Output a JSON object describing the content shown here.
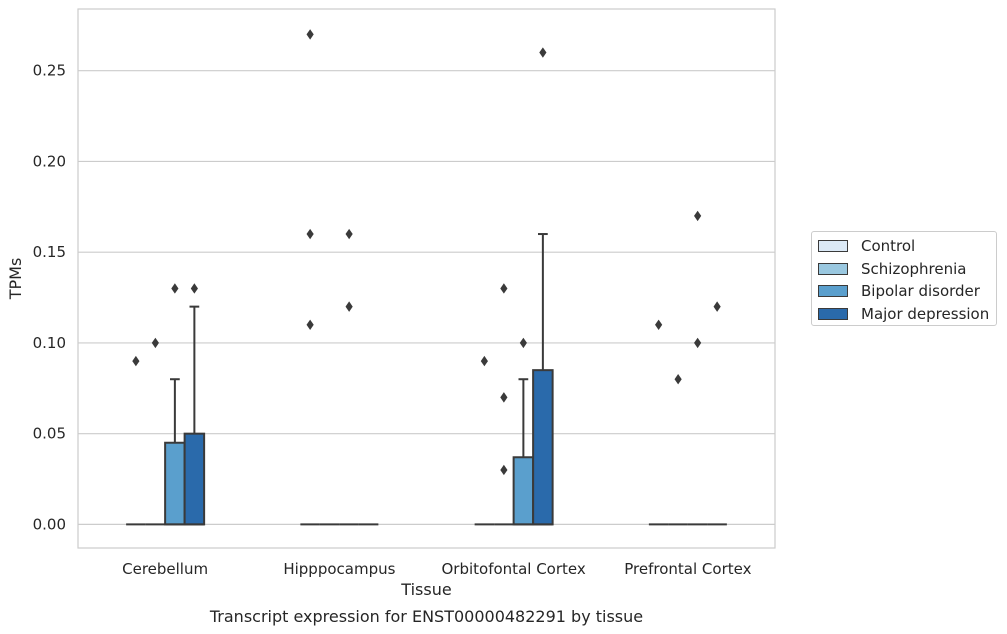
{
  "chart_data": {
    "type": "box",
    "title": "Transcript expression for ENST00000482291 by tissue",
    "xlabel": "Tissue",
    "ylabel": "TPMs",
    "ylim": [
      -0.013,
      0.284
    ],
    "yticks": [
      0.0,
      0.05,
      0.1,
      0.15,
      0.2,
      0.25
    ],
    "ytick_labels": [
      "0.00",
      "0.05",
      "0.10",
      "0.15",
      "0.20",
      "0.25"
    ],
    "grid": true,
    "legend_position": "right",
    "categories": [
      "Cerebellum",
      "Hipppocampus",
      "Orbitofontal Cortex",
      "Prefrontal Cortex"
    ],
    "series": [
      {
        "name": "Control",
        "color": "#dbe9f6",
        "boxes": [
          {
            "q1": 0,
            "median": 0,
            "q3": 0,
            "whisker_low": 0,
            "whisker_high": 0,
            "outliers": [
              0.09
            ]
          },
          {
            "q1": 0,
            "median": 0,
            "q3": 0,
            "whisker_low": 0,
            "whisker_high": 0,
            "outliers": [
              0.11,
              0.16,
              0.27
            ]
          },
          {
            "q1": 0,
            "median": 0,
            "q3": 0,
            "whisker_low": 0,
            "whisker_high": 0,
            "outliers": [
              0.09
            ]
          },
          {
            "q1": 0,
            "median": 0,
            "q3": 0,
            "whisker_low": 0,
            "whisker_high": 0,
            "outliers": [
              0.11
            ]
          }
        ]
      },
      {
        "name": "Schizophrenia",
        "color": "#9ac8e0",
        "boxes": [
          {
            "q1": 0,
            "median": 0,
            "q3": 0,
            "whisker_low": 0,
            "whisker_high": 0,
            "outliers": [
              0.1
            ]
          },
          {
            "q1": 0,
            "median": 0,
            "q3": 0,
            "whisker_low": 0,
            "whisker_high": 0,
            "outliers": []
          },
          {
            "q1": 0,
            "median": 0,
            "q3": 0,
            "whisker_low": 0,
            "whisker_high": 0,
            "outliers": [
              0.03,
              0.07,
              0.13
            ]
          },
          {
            "q1": 0,
            "median": 0,
            "q3": 0,
            "whisker_low": 0,
            "whisker_high": 0,
            "outliers": [
              0.08
            ]
          }
        ]
      },
      {
        "name": "Bipolar disorder",
        "color": "#5a9fcd",
        "boxes": [
          {
            "q1": 0,
            "median": 0,
            "q3": 0.045,
            "whisker_low": 0,
            "whisker_high": 0.08,
            "outliers": [
              0.13
            ]
          },
          {
            "q1": 0,
            "median": 0,
            "q3": 0,
            "whisker_low": 0,
            "whisker_high": 0,
            "outliers": [
              0.12,
              0.16
            ]
          },
          {
            "q1": 0,
            "median": 0,
            "q3": 0.037,
            "whisker_low": 0,
            "whisker_high": 0.08,
            "outliers": [
              0.1
            ]
          },
          {
            "q1": 0,
            "median": 0,
            "q3": 0,
            "whisker_low": 0,
            "whisker_high": 0,
            "outliers": [
              0.1,
              0.17
            ]
          }
        ]
      },
      {
        "name": "Major depression",
        "color": "#2a6aab",
        "boxes": [
          {
            "q1": 0,
            "median": 0,
            "q3": 0.05,
            "whisker_low": 0,
            "whisker_high": 0.12,
            "outliers": [
              0.13
            ]
          },
          {
            "q1": 0,
            "median": 0,
            "q3": 0,
            "whisker_low": 0,
            "whisker_high": 0,
            "outliers": []
          },
          {
            "q1": 0,
            "median": 0,
            "q3": 0.085,
            "whisker_low": 0,
            "whisker_high": 0.16,
            "outliers": [
              0.26
            ]
          },
          {
            "q1": 0,
            "median": 0,
            "q3": 0,
            "whisker_low": 0,
            "whisker_high": 0,
            "outliers": [
              0.12
            ]
          }
        ]
      }
    ]
  }
}
